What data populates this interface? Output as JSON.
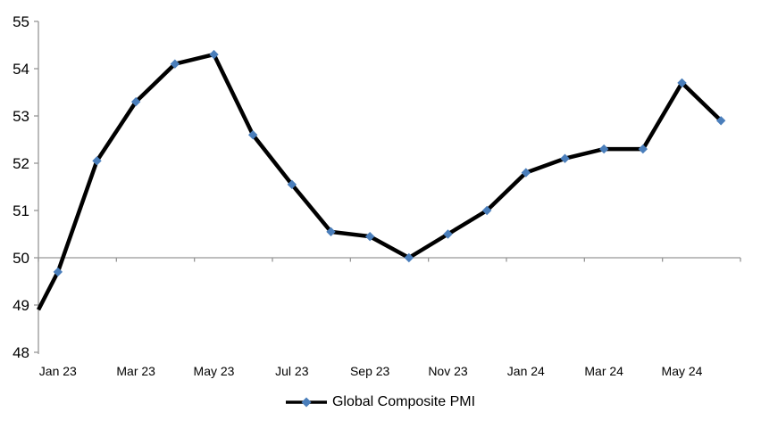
{
  "chart_data": {
    "type": "line",
    "title": "",
    "series": [
      {
        "name": "Global Composite PMI",
        "points": [
          {
            "label": "Dec 22",
            "value": 48.9,
            "marker": false,
            "clipped_at_axis": true
          },
          {
            "label": "Jan 23",
            "value": 49.7,
            "marker": true
          },
          {
            "label": "Feb 23",
            "value": 52.05,
            "marker": true
          },
          {
            "label": "Mar 23",
            "value": 53.3,
            "marker": true
          },
          {
            "label": "Apr 23",
            "value": 54.1,
            "marker": true
          },
          {
            "label": "May 23",
            "value": 54.3,
            "marker": true
          },
          {
            "label": "Jun 23",
            "value": 52.6,
            "marker": true
          },
          {
            "label": "Jul 23",
            "value": 51.55,
            "marker": true
          },
          {
            "label": "Aug 23",
            "value": 50.55,
            "marker": true
          },
          {
            "label": "Sep 23",
            "value": 50.45,
            "marker": true
          },
          {
            "label": "Oct 23",
            "value": 50.0,
            "marker": true
          },
          {
            "label": "Nov 23",
            "value": 50.5,
            "marker": true
          },
          {
            "label": "Dec 23",
            "value": 51.0,
            "marker": true
          },
          {
            "label": "Jan 24",
            "value": 51.8,
            "marker": true
          },
          {
            "label": "Feb 24",
            "value": 52.1,
            "marker": true
          },
          {
            "label": "Mar 24",
            "value": 52.3,
            "marker": true
          },
          {
            "label": "Apr 24",
            "value": 52.3,
            "marker": true
          },
          {
            "label": "May 24",
            "value": 53.7,
            "marker": true
          },
          {
            "label": "Jun 24",
            "value": 52.9,
            "marker": true
          }
        ]
      }
    ],
    "x_tick_labels": [
      "Jan 23",
      "Mar 23",
      "May 23",
      "Jul 23",
      "Sep 23",
      "Nov 23",
      "Jan 24",
      "Mar 24",
      "May 24"
    ],
    "x_tick_label_interval": 2,
    "y_ticks": [
      "48",
      "49",
      "50",
      "51",
      "52",
      "53",
      "54",
      "55"
    ],
    "ylim": [
      48,
      55
    ],
    "x_axis_crosses_at": 50,
    "grid": false,
    "legend": {
      "label": "Global Composite PMI",
      "position": "bottom"
    },
    "colors": {
      "series_line": "#000000",
      "marker_fill": "#4A7EBB",
      "axis_line": "#969696",
      "label_text": "#000000",
      "background": "#FFFFFF"
    }
  }
}
